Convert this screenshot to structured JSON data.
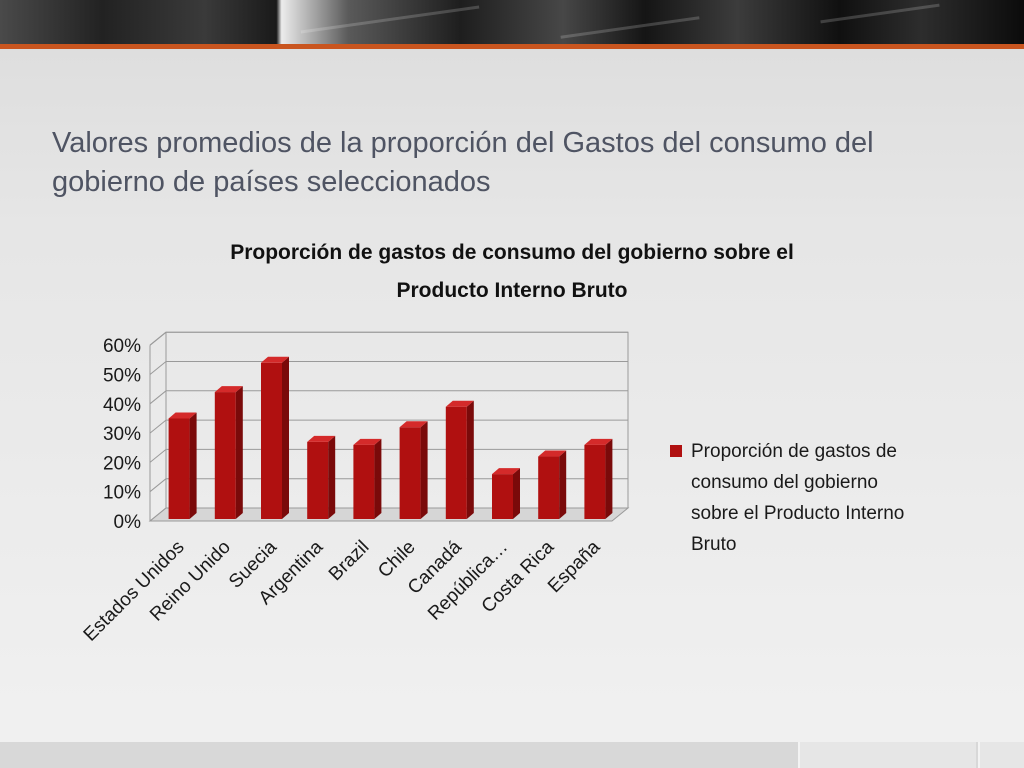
{
  "slide": {
    "title": "Valores promedios de la proporción del Gastos del consumo del gobierno de países seleccionados"
  },
  "colors": {
    "bar_front": "#b01010",
    "bar_side": "#7a0a0a",
    "bar_top": "#d42a2a",
    "accent": "#c9551f",
    "title_text": "#4f5463"
  },
  "chart_data": {
    "type": "bar",
    "title_lines": [
      "Proporción de gastos de consumo del gobierno sobre el",
      "Producto Interno Bruto"
    ],
    "categories": [
      "Estados Unidos",
      "Reino Unido",
      "Suecia",
      "Argentina",
      "Brazil",
      "Chile",
      "Canadá",
      "República…",
      "Costa Rica",
      "España"
    ],
    "series": [
      {
        "name": "Proporción de gastos de consumo del gobierno sobre el Producto Interno Bruto",
        "legend_lines": [
          "Proporción de gastos de",
          "consumo del gobierno",
          "sobre el Producto Interno",
          "Bruto"
        ],
        "values": [
          0.35,
          0.44,
          0.54,
          0.27,
          0.26,
          0.32,
          0.39,
          0.16,
          0.22,
          0.26
        ]
      }
    ],
    "y_ticks": [
      0,
      0.1,
      0.2,
      0.3,
      0.4,
      0.5,
      0.6
    ],
    "y_tick_labels": [
      "0%",
      "10%",
      "20%",
      "30%",
      "40%",
      "50%",
      "60%"
    ],
    "ylim": [
      0,
      0.6
    ],
    "grid": true,
    "legend_position": "right",
    "style": "3d-column"
  }
}
